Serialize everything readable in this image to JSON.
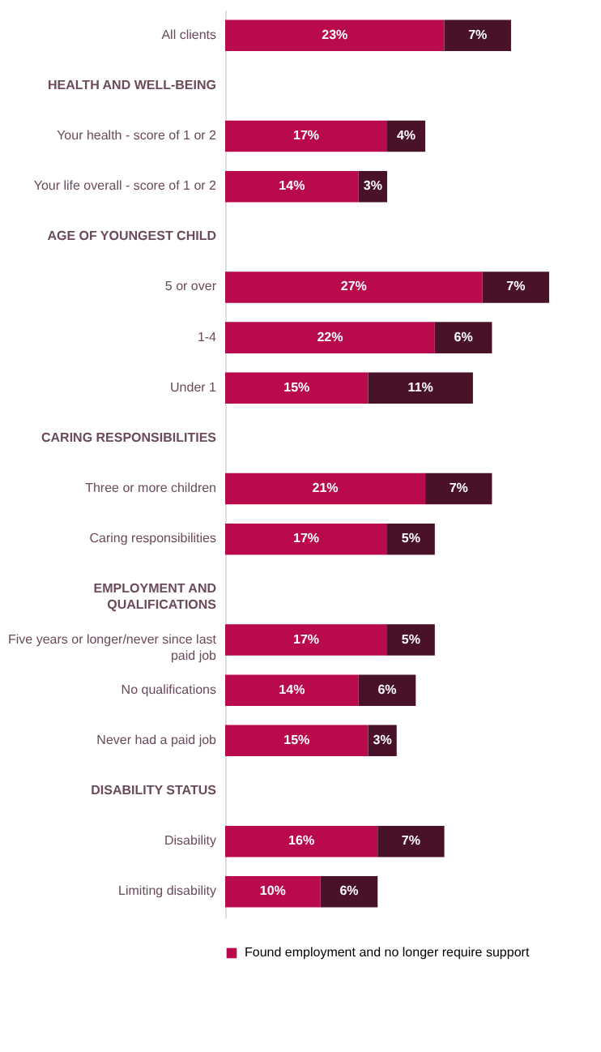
{
  "chart_data": {
    "type": "bar",
    "orientation": "horizontal",
    "stacked": true,
    "legend": "bottom",
    "categories": [
      "All clients",
      "HEALTH AND WELL-BEING",
      "Your health - score of 1 or 2",
      "Your life overall - score of 1 or 2",
      "AGE OF YOUNGEST CHILD",
      "5 or over",
      "1-4",
      "Under 1",
      "CARING RESPONSIBILITIES",
      "Three or more children",
      "Caring responsibilities",
      "EMPLOYMENT AND QUALIFICATIONS",
      "Five years or longer/never since last paid job",
      "No qualifications",
      "Never had a paid job",
      "DISABILITY STATUS",
      "Disability",
      "Limiting disability"
    ],
    "series": [
      {
        "name": "Found employment and no longer require support",
        "color": "#b80a4c",
        "values": [
          23,
          null,
          17,
          14,
          null,
          27,
          22,
          15,
          null,
          21,
          17,
          null,
          17,
          14,
          15,
          null,
          16,
          10
        ],
        "value_labels": [
          "23%",
          null,
          "17%",
          "14%",
          null,
          "27%",
          "22%",
          "15%",
          null,
          "21%",
          "17%",
          null,
          "17%",
          "14%",
          "15%",
          null,
          "16%",
          "10%"
        ]
      },
      {
        "color": "#4a1229",
        "values": [
          7,
          null,
          4,
          3,
          null,
          7,
          6,
          11,
          null,
          7,
          5,
          null,
          5,
          6,
          3,
          null,
          7,
          6
        ],
        "value_labels": [
          "7%",
          null,
          "4%",
          "3%",
          null,
          "7%",
          "6%",
          "11%",
          null,
          "7%",
          "5%",
          null,
          "5%",
          "6%",
          "3%",
          null,
          "7%",
          "6%"
        ]
      }
    ]
  }
}
